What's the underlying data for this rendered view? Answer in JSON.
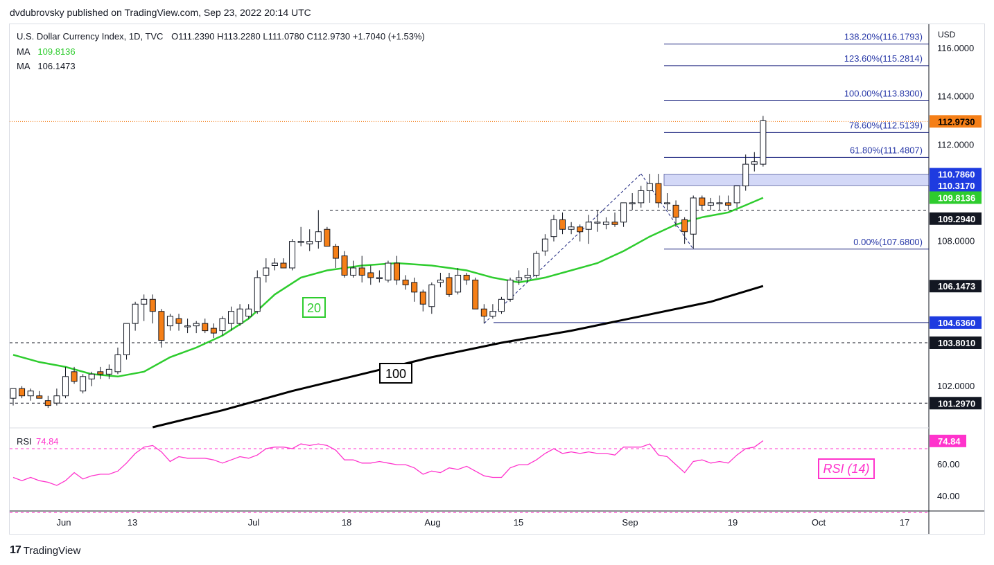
{
  "header": {
    "published_text": "dvdubrovsky published on TradingView.com, Sep 23, 2022 20:14 UTC"
  },
  "legend": {
    "symbol_line": "U.S. Dollar Currency Index, 1D, TVC",
    "ohlc": "O111.2390   H113.2280   L111.0780   C112.9730   +1.7040 (+1.53%)",
    "ma1_label": "MA",
    "ma1_value": "109.8136",
    "ma2_label": "MA",
    "ma2_value": "106.1473"
  },
  "footer": {
    "brand": "TradingView"
  },
  "colors": {
    "up": "#ffffff",
    "down": "#f57f17",
    "ma20": "#2ecc2e",
    "ma100": "#000000",
    "fib": "#1a237e",
    "rsi": "#ff33cc",
    "zone": "#c5cbf5",
    "price_tag": "#f57f17"
  },
  "chart_data": {
    "type": "candlestick",
    "currency_label": "USD",
    "price_axis_ticks": [
      "116.0000",
      "114.0000",
      "112.0000",
      "108.0000",
      "102.0000"
    ],
    "x_axis_labels": [
      "Jun",
      "13",
      "Jul",
      "18",
      "Aug",
      "15",
      "Sep",
      "19",
      "Oct",
      "17"
    ],
    "ylim": [
      100.3,
      117.0
    ],
    "candles": [
      {
        "d": "May26",
        "o": 101.5,
        "h": 101.9,
        "l": 101.2,
        "c": 101.9
      },
      {
        "d": "May27",
        "o": 101.9,
        "h": 102.0,
        "l": 101.5,
        "c": 101.6
      },
      {
        "d": "May30",
        "o": 101.6,
        "h": 101.9,
        "l": 101.4,
        "c": 101.8
      },
      {
        "d": "May31",
        "o": 101.6,
        "h": 101.8,
        "l": 101.5,
        "c": 101.5
      },
      {
        "d": "Jun1",
        "o": 101.4,
        "h": 101.6,
        "l": 101.1,
        "c": 101.2
      },
      {
        "d": "Jun2",
        "o": 101.3,
        "h": 101.9,
        "l": 101.2,
        "c": 101.6
      },
      {
        "d": "Jun3",
        "o": 101.6,
        "h": 102.8,
        "l": 101.5,
        "c": 102.4
      },
      {
        "d": "Jun6",
        "o": 102.6,
        "h": 102.8,
        "l": 102.1,
        "c": 102.2
      },
      {
        "d": "Jun7",
        "o": 101.8,
        "h": 102.5,
        "l": 101.7,
        "c": 102.4
      },
      {
        "d": "Jun8",
        "o": 102.3,
        "h": 102.6,
        "l": 102.0,
        "c": 102.5
      },
      {
        "d": "Jun9",
        "o": 102.6,
        "h": 102.8,
        "l": 102.3,
        "c": 102.5
      },
      {
        "d": "Jun10",
        "o": 102.5,
        "h": 102.9,
        "l": 102.3,
        "c": 102.7
      },
      {
        "d": "Jun13",
        "o": 102.6,
        "h": 103.6,
        "l": 102.5,
        "c": 103.3
      },
      {
        "d": "Jun14",
        "o": 103.3,
        "h": 104.6,
        "l": 103.1,
        "c": 104.6
      },
      {
        "d": "Jun15",
        "o": 104.6,
        "h": 105.5,
        "l": 104.3,
        "c": 105.4
      },
      {
        "d": "Jun16",
        "o": 105.4,
        "h": 105.8,
        "l": 104.7,
        "c": 105.6
      },
      {
        "d": "Jun17",
        "o": 105.6,
        "h": 105.8,
        "l": 104.6,
        "c": 105.1
      },
      {
        "d": "Jun20",
        "o": 105.1,
        "h": 105.2,
        "l": 103.6,
        "c": 103.9
      },
      {
        "d": "Jun21",
        "o": 104.5,
        "h": 105.0,
        "l": 104.3,
        "c": 104.9
      },
      {
        "d": "Jun22",
        "o": 104.8,
        "h": 105.0,
        "l": 104.3,
        "c": 104.6
      },
      {
        "d": "Jun23",
        "o": 104.5,
        "h": 104.8,
        "l": 104.2,
        "c": 104.5
      },
      {
        "d": "Jun24",
        "o": 104.5,
        "h": 104.7,
        "l": 104.2,
        "c": 104.6
      },
      {
        "d": "Jun27",
        "o": 104.6,
        "h": 104.8,
        "l": 104.2,
        "c": 104.3
      },
      {
        "d": "Jun28",
        "o": 104.4,
        "h": 104.6,
        "l": 104.0,
        "c": 104.2
      },
      {
        "d": "Jun29",
        "o": 104.3,
        "h": 104.9,
        "l": 104.1,
        "c": 104.8
      },
      {
        "d": "Jun30",
        "o": 104.6,
        "h": 105.3,
        "l": 104.3,
        "c": 105.1
      },
      {
        "d": "Jul1",
        "o": 104.6,
        "h": 105.4,
        "l": 104.5,
        "c": 105.2
      },
      {
        "d": "Jul4",
        "o": 104.9,
        "h": 105.4,
        "l": 104.8,
        "c": 105.2
      },
      {
        "d": "Jul5",
        "o": 105.1,
        "h": 106.8,
        "l": 105.0,
        "c": 106.5
      },
      {
        "d": "Jul6",
        "o": 106.6,
        "h": 107.3,
        "l": 106.3,
        "c": 106.9
      },
      {
        "d": "Jul7",
        "o": 107.0,
        "h": 107.3,
        "l": 106.8,
        "c": 107.1
      },
      {
        "d": "Jul8",
        "o": 107.1,
        "h": 107.3,
        "l": 106.9,
        "c": 106.9
      },
      {
        "d": "Jul11",
        "o": 106.9,
        "h": 108.1,
        "l": 106.8,
        "c": 108.0
      },
      {
        "d": "Jul12",
        "o": 108.0,
        "h": 108.6,
        "l": 107.8,
        "c": 108.0
      },
      {
        "d": "Jul13",
        "o": 107.9,
        "h": 108.5,
        "l": 107.6,
        "c": 108.0
      },
      {
        "d": "Jul14",
        "o": 108.0,
        "h": 109.3,
        "l": 107.7,
        "c": 108.4
      },
      {
        "d": "Jul15",
        "o": 108.5,
        "h": 108.6,
        "l": 107.9,
        "c": 107.8
      },
      {
        "d": "Jul18",
        "o": 107.8,
        "h": 107.9,
        "l": 106.9,
        "c": 107.3
      },
      {
        "d": "Jul19",
        "o": 107.4,
        "h": 107.6,
        "l": 106.5,
        "c": 106.6
      },
      {
        "d": "Jul20",
        "o": 106.6,
        "h": 107.2,
        "l": 106.5,
        "c": 106.9
      },
      {
        "d": "Jul21",
        "o": 106.9,
        "h": 107.4,
        "l": 106.3,
        "c": 106.6
      },
      {
        "d": "Jul22",
        "o": 106.7,
        "h": 107.0,
        "l": 106.2,
        "c": 106.5
      },
      {
        "d": "Jul25",
        "o": 106.5,
        "h": 106.8,
        "l": 106.3,
        "c": 106.5
      },
      {
        "d": "Jul26",
        "o": 106.4,
        "h": 107.2,
        "l": 106.3,
        "c": 107.1
      },
      {
        "d": "Jul27",
        "o": 107.1,
        "h": 107.4,
        "l": 106.2,
        "c": 106.4
      },
      {
        "d": "Jul28",
        "o": 106.4,
        "h": 106.6,
        "l": 106.0,
        "c": 106.2
      },
      {
        "d": "Jul29",
        "o": 106.3,
        "h": 106.5,
        "l": 105.5,
        "c": 105.9
      },
      {
        "d": "Aug1",
        "o": 105.9,
        "h": 106.0,
        "l": 105.1,
        "c": 105.4
      },
      {
        "d": "Aug2",
        "o": 105.3,
        "h": 106.3,
        "l": 105.0,
        "c": 106.2
      },
      {
        "d": "Aug3",
        "o": 106.3,
        "h": 106.7,
        "l": 106.1,
        "c": 106.4
      },
      {
        "d": "Aug4",
        "o": 106.5,
        "h": 106.7,
        "l": 105.7,
        "c": 105.8
      },
      {
        "d": "Aug5",
        "o": 105.9,
        "h": 106.9,
        "l": 105.8,
        "c": 106.6
      },
      {
        "d": "Aug8",
        "o": 106.6,
        "h": 106.7,
        "l": 106.2,
        "c": 106.4
      },
      {
        "d": "Aug9",
        "o": 106.4,
        "h": 106.5,
        "l": 105.2,
        "c": 105.2
      },
      {
        "d": "Aug10",
        "o": 105.2,
        "h": 105.4,
        "l": 104.6,
        "c": 104.9
      },
      {
        "d": "Aug11",
        "o": 104.9,
        "h": 105.4,
        "l": 104.8,
        "c": 105.1
      },
      {
        "d": "Aug12",
        "o": 105.1,
        "h": 105.7,
        "l": 105.0,
        "c": 105.6
      },
      {
        "d": "Aug15",
        "o": 105.6,
        "h": 106.5,
        "l": 105.5,
        "c": 106.4
      },
      {
        "d": "Aug16",
        "o": 106.4,
        "h": 106.8,
        "l": 106.2,
        "c": 106.5
      },
      {
        "d": "Aug17",
        "o": 106.5,
        "h": 106.9,
        "l": 106.3,
        "c": 106.6
      },
      {
        "d": "Aug18",
        "o": 106.6,
        "h": 107.6,
        "l": 106.5,
        "c": 107.5
      },
      {
        "d": "Aug19",
        "o": 107.6,
        "h": 108.3,
        "l": 107.4,
        "c": 108.1
      },
      {
        "d": "Aug22",
        "o": 108.2,
        "h": 109.1,
        "l": 108.0,
        "c": 108.9
      },
      {
        "d": "Aug23",
        "o": 108.9,
        "h": 109.2,
        "l": 108.3,
        "c": 108.5
      },
      {
        "d": "Aug24",
        "o": 108.5,
        "h": 108.8,
        "l": 108.3,
        "c": 108.6
      },
      {
        "d": "Aug25",
        "o": 108.6,
        "h": 108.7,
        "l": 108.0,
        "c": 108.4
      },
      {
        "d": "Aug26",
        "o": 108.5,
        "h": 109.1,
        "l": 107.9,
        "c": 108.8
      },
      {
        "d": "Aug29",
        "o": 108.8,
        "h": 109.3,
        "l": 108.4,
        "c": 108.8
      },
      {
        "d": "Aug30",
        "o": 108.7,
        "h": 109.0,
        "l": 108.5,
        "c": 108.8
      },
      {
        "d": "Aug31",
        "o": 108.8,
        "h": 109.2,
        "l": 108.6,
        "c": 108.7
      },
      {
        "d": "Sep1",
        "o": 108.8,
        "h": 109.6,
        "l": 108.6,
        "c": 109.6
      },
      {
        "d": "Sep2",
        "o": 109.6,
        "h": 110.0,
        "l": 109.3,
        "c": 109.6
      },
      {
        "d": "Sep5",
        "o": 109.6,
        "h": 110.3,
        "l": 109.4,
        "c": 110.1
      },
      {
        "d": "Sep6",
        "o": 110.1,
        "h": 110.8,
        "l": 109.6,
        "c": 110.4
      },
      {
        "d": "Sep7",
        "o": 110.4,
        "h": 110.8,
        "l": 109.4,
        "c": 109.6
      },
      {
        "d": "Sep8",
        "o": 109.6,
        "h": 110.0,
        "l": 109.3,
        "c": 109.6
      },
      {
        "d": "Sep9",
        "o": 109.5,
        "h": 109.7,
        "l": 108.6,
        "c": 109.0
      },
      {
        "d": "Sep12",
        "o": 108.9,
        "h": 109.0,
        "l": 107.9,
        "c": 108.4
      },
      {
        "d": "Sep13",
        "o": 108.3,
        "h": 109.9,
        "l": 107.7,
        "c": 109.8
      },
      {
        "d": "Sep14",
        "o": 109.8,
        "h": 109.9,
        "l": 109.3,
        "c": 109.5
      },
      {
        "d": "Sep15",
        "o": 109.5,
        "h": 109.8,
        "l": 109.3,
        "c": 109.6
      },
      {
        "d": "Sep16",
        "o": 109.6,
        "h": 109.9,
        "l": 109.3,
        "c": 109.6
      },
      {
        "d": "Sep19",
        "o": 109.6,
        "h": 109.9,
        "l": 109.3,
        "c": 109.5
      },
      {
        "d": "Sep20",
        "o": 109.6,
        "h": 110.3,
        "l": 109.4,
        "c": 110.3
      },
      {
        "d": "Sep21",
        "o": 110.3,
        "h": 111.6,
        "l": 110.1,
        "c": 111.2
      },
      {
        "d": "Sep22",
        "o": 111.2,
        "h": 111.7,
        "l": 110.9,
        "c": 111.3
      },
      {
        "d": "Sep23",
        "o": 111.2,
        "h": 113.2,
        "l": 111.1,
        "c": 113.0
      }
    ],
    "ma20": [
      [
        0,
        103.3
      ],
      [
        3,
        103.0
      ],
      [
        6,
        102.8
      ],
      [
        9,
        102.5
      ],
      [
        12,
        102.4
      ],
      [
        15,
        102.6
      ],
      [
        18,
        103.2
      ],
      [
        21,
        103.6
      ],
      [
        24,
        104.1
      ],
      [
        27,
        104.8
      ],
      [
        30,
        105.8
      ],
      [
        33,
        106.5
      ],
      [
        36,
        106.8
      ],
      [
        40,
        107.0
      ],
      [
        44,
        107.1
      ],
      [
        48,
        107.0
      ],
      [
        52,
        106.8
      ],
      [
        55,
        106.5
      ],
      [
        58,
        106.3
      ],
      [
        61,
        106.5
      ],
      [
        64,
        106.8
      ],
      [
        67,
        107.1
      ],
      [
        70,
        107.6
      ],
      [
        73,
        108.2
      ],
      [
        76,
        108.7
      ],
      [
        79,
        109.0
      ],
      [
        82,
        109.2
      ],
      [
        84,
        109.5
      ],
      [
        86,
        109.81
      ]
    ],
    "ma100": [
      [
        16,
        100.3
      ],
      [
        24,
        101.0
      ],
      [
        32,
        101.8
      ],
      [
        40,
        102.5
      ],
      [
        48,
        103.2
      ],
      [
        56,
        103.8
      ],
      [
        64,
        104.3
      ],
      [
        72,
        104.9
      ],
      [
        80,
        105.5
      ],
      [
        86,
        106.15
      ]
    ],
    "ma20_label": "20",
    "ma100_label": "100",
    "fibonacci": [
      {
        "label": "138.20%(116.1793)",
        "value": 116.1793
      },
      {
        "label": "123.60%(115.2814)",
        "value": 115.2814
      },
      {
        "label": "100.00%(113.8300)",
        "value": 113.83
      },
      {
        "label": "78.60%(112.5139)",
        "value": 112.5139
      },
      {
        "label": "61.80%(111.4807)",
        "value": 111.4807
      },
      {
        "label": "0.00%(107.6800)",
        "value": 107.68
      }
    ],
    "levels": [
      {
        "label": "109.2940",
        "value": 109.294,
        "style": "dashed"
      },
      {
        "label": "104.6360",
        "value": 104.636,
        "style": "solid"
      },
      {
        "label": "103.8010",
        "value": 103.801,
        "style": "dashed"
      },
      {
        "label": "101.2970",
        "value": 101.297,
        "style": "dashed"
      }
    ],
    "zone": {
      "top_label": "110.7860",
      "top": 110.786,
      "bottom_label": "110.3170",
      "bottom": 110.317
    },
    "last_price_label": "112.9730",
    "last_price": 112.973,
    "ma20_tag": "109.8136",
    "ma100_tag": "106.1473",
    "rsi": {
      "label": "RSI",
      "value_label": "74.84",
      "tag": "74.84",
      "box_label": "RSI (14)",
      "ticks": [
        "60.00",
        "40.00"
      ],
      "ylim": [
        31,
        83
      ],
      "overbought": 70,
      "oversold": 30,
      "values": [
        52,
        50,
        52,
        50,
        49,
        47,
        50,
        55,
        51,
        53,
        54,
        54,
        56,
        61,
        67,
        71,
        72,
        68,
        62,
        65,
        64,
        64,
        64,
        63,
        61,
        63,
        65,
        64,
        66,
        70,
        71,
        71,
        70,
        73,
        72,
        73,
        72,
        69,
        63,
        63,
        61,
        61,
        62,
        61,
        60,
        60,
        58,
        54,
        56,
        55,
        58,
        57,
        59,
        56,
        53,
        52,
        52,
        58,
        60,
        60,
        63,
        67,
        70,
        67,
        68,
        67,
        68,
        67,
        67,
        66,
        71,
        71,
        71,
        73,
        66,
        65,
        60,
        55,
        62,
        63,
        61,
        62,
        61,
        66,
        70,
        71,
        75
      ]
    }
  }
}
